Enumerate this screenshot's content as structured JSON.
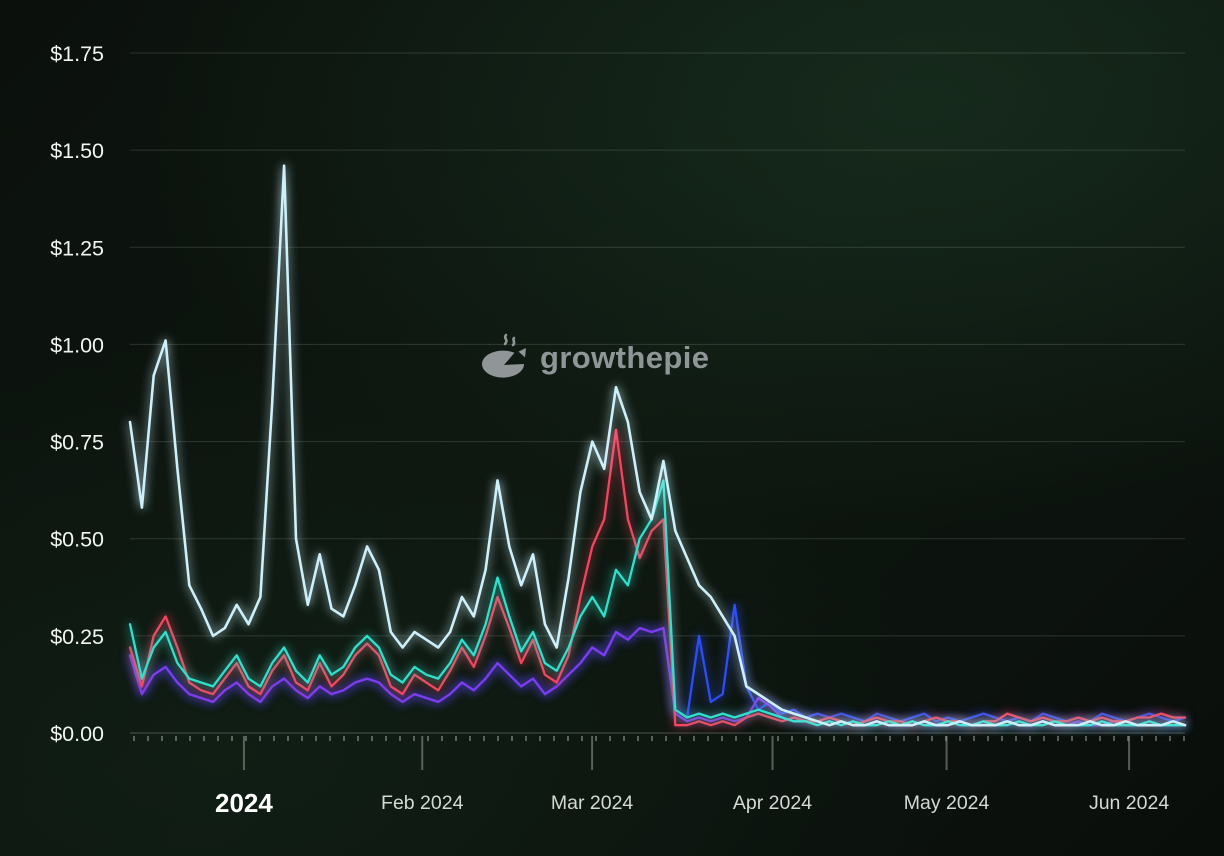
{
  "watermark": {
    "grow": "grow",
    "the": "the",
    "pie": "pie"
  },
  "colors": {
    "background_dark": "#0b100c",
    "grid": "rgba(220,228,220,0.16)",
    "axis_text": "#f2f4f2",
    "x_text": "#d5d9d5",
    "watermark_gray": "#9ba1a4"
  },
  "chart_data": {
    "type": "line",
    "title": "",
    "xlabel": "",
    "ylabel": "",
    "ylim": [
      0,
      1.75
    ],
    "grid": true,
    "legend": "none",
    "y_ticks": [
      {
        "value": 0.0,
        "label": "$0.00"
      },
      {
        "value": 0.25,
        "label": "$0.25"
      },
      {
        "value": 0.5,
        "label": "$0.50"
      },
      {
        "value": 0.75,
        "label": "$0.75"
      },
      {
        "value": 1.0,
        "label": "$1.00"
      },
      {
        "value": 1.25,
        "label": "$1.25"
      },
      {
        "value": 1.5,
        "label": "$1.50"
      },
      {
        "value": 1.75,
        "label": "$1.75"
      }
    ],
    "x_ticks": [
      {
        "label": "2024",
        "t": 0.108,
        "bold": true
      },
      {
        "label": "Feb 2024",
        "t": 0.277,
        "bold": false
      },
      {
        "label": "Mar 2024",
        "t": 0.438,
        "bold": false
      },
      {
        "label": "Apr 2024",
        "t": 0.609,
        "bold": false
      },
      {
        "label": "May 2024",
        "t": 0.774,
        "bold": false
      },
      {
        "label": "Jun 2024",
        "t": 0.947,
        "bold": false
      }
    ],
    "series": [
      {
        "name": "blue-line",
        "color": "#2e4ef5",
        "values": [
          0.2,
          0.1,
          0.15,
          0.17,
          0.13,
          0.1,
          0.09,
          0.08,
          0.11,
          0.13,
          0.1,
          0.08,
          0.12,
          0.14,
          0.11,
          0.09,
          0.12,
          0.1,
          0.11,
          0.13,
          0.14,
          0.13,
          0.1,
          0.08,
          0.1,
          0.09,
          0.08,
          0.1,
          0.13,
          0.11,
          0.14,
          0.18,
          0.15,
          0.12,
          0.14,
          0.1,
          0.12,
          0.15,
          0.18,
          0.22,
          0.2,
          0.26,
          0.24,
          0.27,
          0.26,
          0.27,
          0.06,
          0.04,
          0.25,
          0.08,
          0.1,
          0.33,
          0.12,
          0.06,
          0.08,
          0.05,
          0.06,
          0.04,
          0.05,
          0.04,
          0.05,
          0.04,
          0.03,
          0.05,
          0.04,
          0.03,
          0.04,
          0.05,
          0.03,
          0.04,
          0.03,
          0.04,
          0.05,
          0.04,
          0.03,
          0.04,
          0.03,
          0.05,
          0.04,
          0.03,
          0.04,
          0.03,
          0.05,
          0.04,
          0.03,
          0.04,
          0.05,
          0.04,
          0.03,
          0.04
        ]
      },
      {
        "name": "purple-line",
        "color": "#7c3cec",
        "values": [
          0.2,
          0.1,
          0.15,
          0.17,
          0.13,
          0.1,
          0.09,
          0.08,
          0.11,
          0.13,
          0.1,
          0.08,
          0.12,
          0.14,
          0.11,
          0.09,
          0.12,
          0.1,
          0.11,
          0.13,
          0.14,
          0.13,
          0.1,
          0.08,
          0.1,
          0.09,
          0.08,
          0.1,
          0.13,
          0.11,
          0.14,
          0.18,
          0.15,
          0.12,
          0.14,
          0.1,
          0.12,
          0.15,
          0.18,
          0.22,
          0.2,
          0.26,
          0.24,
          0.27,
          0.26,
          0.27,
          0.05,
          0.03,
          0.04,
          0.03,
          0.04,
          0.03,
          0.04,
          0.09,
          0.07,
          0.04,
          0.03,
          0.03,
          0.02,
          0.03,
          0.02,
          0.03,
          0.02,
          0.03,
          0.02,
          0.02,
          0.03,
          0.02,
          0.02,
          0.03,
          0.02,
          0.02,
          0.03,
          0.02,
          0.03,
          0.02,
          0.02,
          0.03,
          0.02,
          0.02,
          0.03,
          0.02,
          0.02,
          0.03,
          0.02,
          0.02,
          0.03,
          0.02,
          0.02,
          0.02
        ]
      },
      {
        "name": "red-line",
        "color": "#f4455f",
        "values": [
          0.22,
          0.12,
          0.25,
          0.3,
          0.22,
          0.13,
          0.11,
          0.1,
          0.14,
          0.18,
          0.12,
          0.1,
          0.16,
          0.2,
          0.13,
          0.11,
          0.18,
          0.12,
          0.15,
          0.2,
          0.23,
          0.2,
          0.12,
          0.1,
          0.15,
          0.13,
          0.11,
          0.16,
          0.22,
          0.17,
          0.25,
          0.35,
          0.27,
          0.18,
          0.24,
          0.15,
          0.13,
          0.2,
          0.35,
          0.48,
          0.55,
          0.78,
          0.55,
          0.45,
          0.52,
          0.55,
          0.02,
          0.02,
          0.03,
          0.02,
          0.03,
          0.02,
          0.04,
          0.05,
          0.04,
          0.03,
          0.04,
          0.03,
          0.03,
          0.04,
          0.03,
          0.02,
          0.03,
          0.04,
          0.03,
          0.03,
          0.02,
          0.03,
          0.04,
          0.03,
          0.03,
          0.02,
          0.03,
          0.03,
          0.05,
          0.04,
          0.03,
          0.04,
          0.03,
          0.03,
          0.04,
          0.03,
          0.04,
          0.03,
          0.03,
          0.04,
          0.04,
          0.05,
          0.04,
          0.04
        ]
      },
      {
        "name": "teal-line",
        "color": "#2fe0cd",
        "values": [
          0.28,
          0.14,
          0.22,
          0.26,
          0.18,
          0.14,
          0.13,
          0.12,
          0.16,
          0.2,
          0.14,
          0.12,
          0.18,
          0.22,
          0.16,
          0.13,
          0.2,
          0.15,
          0.17,
          0.22,
          0.25,
          0.22,
          0.15,
          0.13,
          0.17,
          0.15,
          0.14,
          0.18,
          0.24,
          0.2,
          0.28,
          0.4,
          0.3,
          0.21,
          0.26,
          0.18,
          0.16,
          0.22,
          0.3,
          0.35,
          0.3,
          0.42,
          0.38,
          0.5,
          0.55,
          0.65,
          0.06,
          0.04,
          0.05,
          0.04,
          0.05,
          0.04,
          0.05,
          0.06,
          0.05,
          0.04,
          0.03,
          0.03,
          0.02,
          0.03,
          0.02,
          0.03,
          0.02,
          0.02,
          0.03,
          0.02,
          0.03,
          0.02,
          0.02,
          0.03,
          0.02,
          0.02,
          0.03,
          0.02,
          0.02,
          0.03,
          0.02,
          0.02,
          0.03,
          0.02,
          0.02,
          0.02,
          0.03,
          0.02,
          0.02,
          0.02,
          0.03,
          0.02,
          0.02,
          0.02
        ]
      },
      {
        "name": "pale-blue-line",
        "color": "#cdf0fb",
        "values": [
          0.8,
          0.58,
          0.92,
          1.01,
          0.68,
          0.38,
          0.32,
          0.25,
          0.27,
          0.33,
          0.28,
          0.35,
          0.85,
          1.46,
          0.5,
          0.33,
          0.46,
          0.32,
          0.3,
          0.38,
          0.48,
          0.42,
          0.26,
          0.22,
          0.26,
          0.24,
          0.22,
          0.26,
          0.35,
          0.3,
          0.42,
          0.65,
          0.48,
          0.38,
          0.46,
          0.28,
          0.22,
          0.4,
          0.62,
          0.75,
          0.68,
          0.89,
          0.8,
          0.62,
          0.55,
          0.7,
          0.52,
          0.45,
          0.38,
          0.35,
          0.3,
          0.25,
          0.12,
          0.1,
          0.08,
          0.06,
          0.05,
          0.04,
          0.03,
          0.02,
          0.03,
          0.02,
          0.02,
          0.03,
          0.02,
          0.02,
          0.02,
          0.03,
          0.02,
          0.02,
          0.03,
          0.02,
          0.02,
          0.02,
          0.03,
          0.02,
          0.02,
          0.03,
          0.02,
          0.02,
          0.02,
          0.03,
          0.02,
          0.02,
          0.03,
          0.02,
          0.02,
          0.02,
          0.03,
          0.02
        ]
      }
    ]
  }
}
